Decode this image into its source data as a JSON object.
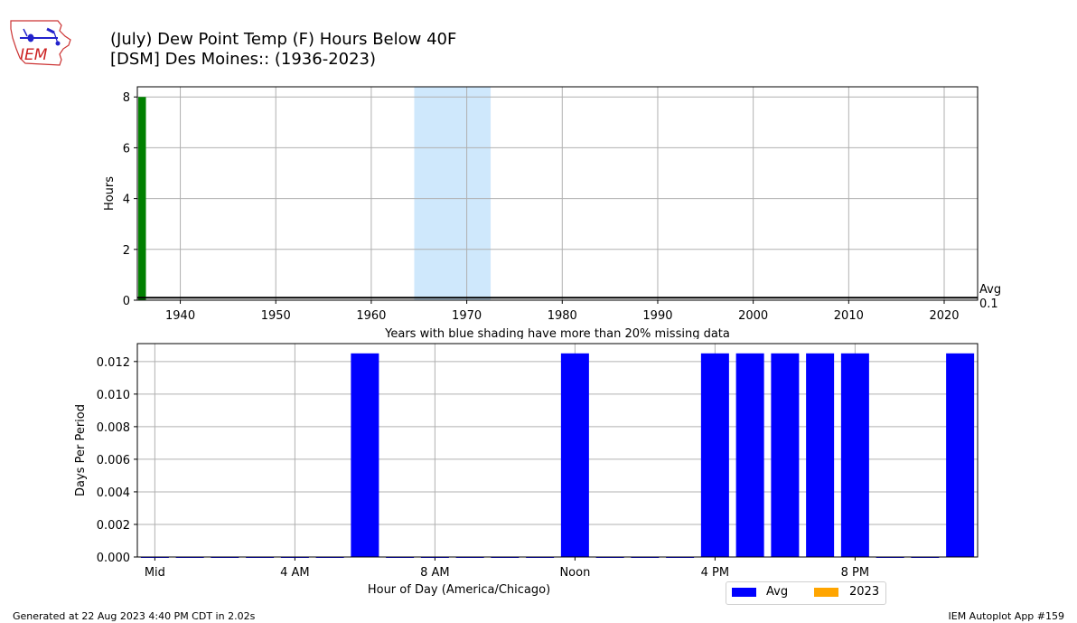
{
  "header": {
    "logo_text": "IEM",
    "title_line1": "(July) Dew Point Temp (F) Hours Below 40F",
    "title_line2": "[DSM] Des Moines:: (1936-2023)"
  },
  "colors": {
    "annual_bar": "#008000",
    "missing_shade": "#cfe8fc",
    "avg_bar": "#0000ff",
    "year_bar": "#ffa500",
    "grid": "#b0b0b0"
  },
  "chart_data": [
    {
      "type": "bar",
      "ylabel": "Hours",
      "xlabel": "",
      "xlim": [
        1935.5,
        2023.5
      ],
      "ylim": [
        0,
        8.4
      ],
      "x_ticks": [
        1940,
        1950,
        1960,
        1970,
        1980,
        1990,
        2000,
        2010,
        2020
      ],
      "y_ticks": [
        0,
        2,
        4,
        6,
        8
      ],
      "grid": true,
      "years": [
        1936
      ],
      "values": [
        8
      ],
      "missing_shading": [
        [
          1964.5,
          1972.5
        ]
      ],
      "avg_line": 0.1,
      "avg_label": "Avg",
      "avg_value_label": "0.1",
      "annotation": "Years with blue shading have more than 20% missing data"
    },
    {
      "type": "bar",
      "xlabel": "Hour of Day (America/Chicago)",
      "ylabel": "Days Per Period",
      "xlim": [
        -0.5,
        23.5
      ],
      "ylim": [
        0,
        0.0131
      ],
      "y_ticks": [
        0.0,
        0.002,
        0.004,
        0.006,
        0.008,
        0.01,
        0.012
      ],
      "y_tick_labels": [
        "0.000",
        "0.002",
        "0.004",
        "0.006",
        "0.008",
        "0.010",
        "0.012"
      ],
      "x_ticks": [
        0,
        4,
        8,
        12,
        16,
        20
      ],
      "x_tick_labels": [
        "Mid",
        "4 AM",
        "8 AM",
        "Noon",
        "4 PM",
        "8 PM"
      ],
      "grid": true,
      "categories": [
        0,
        1,
        2,
        3,
        4,
        5,
        6,
        7,
        8,
        9,
        10,
        11,
        12,
        13,
        14,
        15,
        16,
        17,
        18,
        19,
        20,
        21,
        22,
        23
      ],
      "series": [
        {
          "name": "Avg",
          "values": [
            0,
            0,
            0,
            0,
            0,
            0,
            0.0125,
            0,
            0,
            0,
            0,
            0,
            0.0125,
            0,
            0,
            0,
            0.0125,
            0.0125,
            0.0125,
            0.0125,
            0.0125,
            0,
            0,
            0.0125
          ]
        },
        {
          "name": "2023",
          "values": [
            0,
            0,
            0,
            0,
            0,
            0,
            0,
            0,
            0,
            0,
            0,
            0,
            0,
            0,
            0,
            0,
            0,
            0,
            0,
            0,
            0,
            0,
            0,
            0
          ]
        }
      ],
      "legend_location": "below-right"
    }
  ],
  "footer": {
    "left": "Generated at 22 Aug 2023 4:40 PM CDT in 2.02s",
    "right": "IEM Autoplot App #159"
  }
}
